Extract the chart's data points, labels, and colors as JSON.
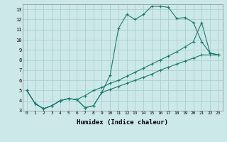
{
  "xlabel": "Humidex (Indice chaleur)",
  "bg_color": "#cde8e8",
  "grid_color": "#aacfcf",
  "line_color": "#1a7a6e",
  "xlim": [
    -0.5,
    23.5
  ],
  "ylim": [
    3,
    13.5
  ],
  "xticks": [
    0,
    1,
    2,
    3,
    4,
    5,
    6,
    7,
    8,
    9,
    10,
    11,
    12,
    13,
    14,
    15,
    16,
    17,
    18,
    19,
    20,
    21,
    22,
    23
  ],
  "yticks": [
    3,
    4,
    5,
    6,
    7,
    8,
    9,
    10,
    11,
    12,
    13
  ],
  "line1_x": [
    0,
    1,
    2,
    3,
    4,
    5,
    6,
    7,
    8,
    9,
    10,
    11,
    12,
    13,
    14,
    15,
    16,
    17,
    18,
    19,
    20,
    21,
    22,
    23
  ],
  "line1_y": [
    5.0,
    3.7,
    3.2,
    3.5,
    4.0,
    4.2,
    4.1,
    3.3,
    3.5,
    4.8,
    6.5,
    11.1,
    12.5,
    12.0,
    12.5,
    13.3,
    13.3,
    13.2,
    12.1,
    12.2,
    11.7,
    9.8,
    8.7,
    8.5
  ],
  "line2_x": [
    0,
    1,
    2,
    3,
    4,
    5,
    6,
    7,
    8,
    9,
    10,
    11,
    12,
    13,
    14,
    15,
    16,
    17,
    18,
    19,
    20,
    21,
    22,
    23
  ],
  "line2_y": [
    5.0,
    3.7,
    3.2,
    3.5,
    4.0,
    4.2,
    4.1,
    4.5,
    5.0,
    5.3,
    5.7,
    6.0,
    6.4,
    6.8,
    7.2,
    7.6,
    8.0,
    8.4,
    8.8,
    9.3,
    9.8,
    11.7,
    8.7,
    8.5
  ],
  "line3_x": [
    0,
    1,
    2,
    3,
    4,
    5,
    6,
    7,
    8,
    9,
    10,
    11,
    12,
    13,
    14,
    15,
    16,
    17,
    18,
    19,
    20,
    21,
    22,
    23
  ],
  "line3_y": [
    5.0,
    3.7,
    3.2,
    3.5,
    4.0,
    4.2,
    4.1,
    3.3,
    3.5,
    4.8,
    5.1,
    5.4,
    5.7,
    6.0,
    6.3,
    6.6,
    7.0,
    7.3,
    7.6,
    7.9,
    8.2,
    8.5,
    8.5,
    8.5
  ]
}
